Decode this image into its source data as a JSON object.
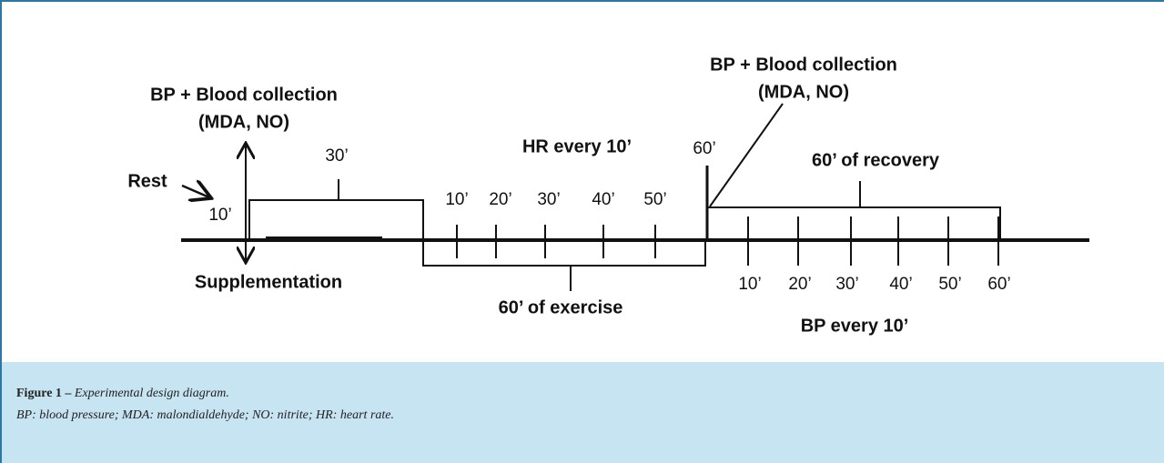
{
  "diagram": {
    "left_label": {
      "line1": "BP + Blood collection",
      "line2": "(MDA, NO)"
    },
    "rest": "Rest",
    "rest_duration": "10’",
    "rest_box_duration": "30’",
    "supplementation": "Supplementation",
    "hr_label": "HR every 10’",
    "hr_ticks": [
      "10’",
      "20’",
      "30’",
      "40’",
      "50’"
    ],
    "exercise_end": "60’",
    "right_label": {
      "line1": "BP + Blood collection",
      "line2": "(MDA, NO)"
    },
    "recovery": "60’ of recovery",
    "exercise": "60’ of exercise",
    "bp_ticks": [
      "10’",
      "20’",
      "30’",
      "40’",
      "50’",
      "60’"
    ],
    "bp_label": "BP every 10’"
  },
  "caption": {
    "figure": "Figure 1 –",
    "title": "Experimental design diagram.",
    "note": "BP: blood pressure; MDA: malondialdehyde; NO: nitrite; HR: heart rate."
  }
}
